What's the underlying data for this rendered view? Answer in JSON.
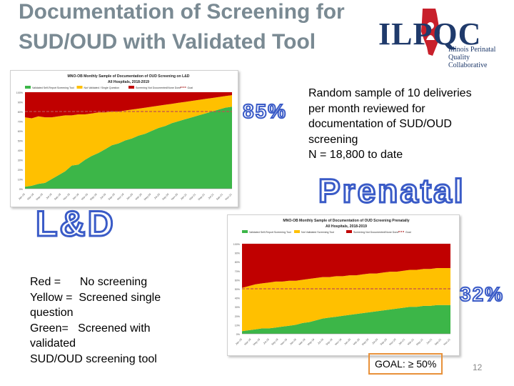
{
  "slide": {
    "title": "Documentation of Screening for SUD/OUD with Validated Tool",
    "page_number": "12"
  },
  "logo": {
    "text": "ILPQC",
    "subtitle_line1": "Illinois Perinatal",
    "subtitle_line2": "Quality Collaborative"
  },
  "description": {
    "line1": "Random sample of 10 deliveries",
    "line2": "per month reviewed for",
    "line3": "documentation of SUD/OUD",
    "line4": "screening",
    "line5": "N = 18,800 to date"
  },
  "labels": {
    "ld_percent": "85%",
    "prenatal_percent": "32%",
    "prenatal_word": "Prenatal",
    "ld_word": "L&D"
  },
  "legend": {
    "line1": "Red =      No screening",
    "line2": "Yellow =  Screened single",
    "line3": "question",
    "line4": "Green=   Screened with",
    "line5": "validated",
    "line6": "SUD/OUD screening tool"
  },
  "goal": {
    "text": "GOAL: ≥ 50%"
  },
  "colors": {
    "red": "#c00000",
    "yellow": "#ffc000",
    "green": "#3cb648",
    "goal_line": "#c05050",
    "outline_blue": "#3a5bc7"
  },
  "chart_data": [
    {
      "type": "area",
      "title": "MNO-OB Monthly Sample of Documentation of OUD Screening on L&D",
      "subtitle": "All Hospitals, 2018-2019",
      "legend": [
        "Validated Self-Report Screening Tool",
        "Not Validated / Single Question",
        "Screening Not Documented/None Done",
        "Goal"
      ],
      "ylim": [
        0,
        100
      ],
      "y_ticks": [
        "0%",
        "10%",
        "20%",
        "30%",
        "40%",
        "50%",
        "60%",
        "70%",
        "80%",
        "90%",
        "100%"
      ],
      "x_ticks": [
        "Jan-18",
        "Mar-18",
        "May-18",
        "Jul-18",
        "Sep-18",
        "Nov-18",
        "Jan-19",
        "Mar-19",
        "May-19",
        "Jul-19",
        "Sep-19",
        "Nov-19",
        "Jan-20",
        "Mar-20",
        "May-20",
        "Jul-20",
        "Sep-20",
        "Nov-20",
        "Jan-21",
        "Mar-21",
        "May-21",
        "Jul-21",
        "Sep-21",
        "Nov-21"
      ],
      "goal": 80,
      "series": [
        {
          "name": "Validated Self-Report Screening Tool",
          "values": [
            2,
            3,
            5,
            6,
            10,
            14,
            18,
            24,
            25,
            30,
            34,
            37,
            41,
            45,
            47,
            50,
            52,
            55,
            57,
            60,
            63,
            65,
            68,
            70,
            72,
            74,
            76,
            78,
            80,
            82,
            84,
            85
          ]
        },
        {
          "name": "Not Validated / Single Question",
          "values": [
            72,
            70,
            70,
            68,
            64,
            61,
            58,
            52,
            52,
            47,
            44,
            42,
            38,
            35,
            33,
            31,
            30,
            28,
            27,
            25,
            23,
            22,
            20,
            19,
            18,
            17,
            16,
            15,
            14,
            13,
            12,
            12
          ]
        },
        {
          "name": "Screening Not Documented/None Done",
          "values": [
            26,
            27,
            25,
            26,
            26,
            25,
            24,
            24,
            23,
            23,
            22,
            21,
            21,
            20,
            20,
            19,
            18,
            17,
            16,
            15,
            14,
            13,
            12,
            11,
            10,
            9,
            8,
            7,
            6,
            5,
            4,
            3
          ]
        }
      ]
    },
    {
      "type": "area",
      "title": "MNO-OB Monthly Sample of Documentation of OUD Screening Prenatally",
      "subtitle": "All Hospitals, 2018-2019",
      "legend": [
        "Validated Self-Report Screening Tool",
        "Not Validated Screening Tool",
        "Screening Not Documented/None Done",
        "Goal"
      ],
      "ylim": [
        0,
        100
      ],
      "y_ticks": [
        "0%",
        "10%",
        "20%",
        "30%",
        "40%",
        "50%",
        "60%",
        "70%",
        "80%",
        "90%",
        "100%"
      ],
      "x_ticks": [
        "Jan-18",
        "Mar-18",
        "May-18",
        "Jul-18",
        "Sep-18",
        "Nov-18",
        "Jan-19",
        "Mar-19",
        "May-19",
        "Jul-19",
        "Sep-19",
        "Nov-19",
        "Jan-20",
        "Mar-20",
        "May-20",
        "Jul-20",
        "Sep-20",
        "Nov-20",
        "Jan-21",
        "Mar-21",
        "May-21",
        "Jul-21",
        "Sep-21",
        "Nov-21"
      ],
      "goal": 50,
      "series": [
        {
          "name": "Validated Self-Report Screening Tool",
          "values": [
            3,
            4,
            5,
            6,
            6,
            7,
            8,
            9,
            10,
            12,
            13,
            15,
            17,
            18,
            19,
            20,
            21,
            22,
            23,
            24,
            25,
            26,
            27,
            28,
            29,
            30,
            30,
            31,
            31,
            32,
            32,
            32
          ]
        },
        {
          "name": "Not Validated Screening Tool",
          "values": [
            48,
            49,
            50,
            50,
            51,
            51,
            50,
            50,
            49,
            48,
            48,
            47,
            46,
            45,
            45,
            44,
            44,
            43,
            43,
            43,
            42,
            42,
            42,
            41,
            41,
            41,
            41,
            41,
            41,
            41,
            41,
            41
          ]
        },
        {
          "name": "Screening Not Documented/None Done",
          "values": [
            49,
            47,
            45,
            44,
            43,
            42,
            42,
            41,
            41,
            40,
            39,
            38,
            37,
            37,
            36,
            36,
            35,
            35,
            34,
            33,
            33,
            32,
            31,
            31,
            30,
            29,
            29,
            28,
            28,
            27,
            27,
            27
          ]
        }
      ]
    }
  ]
}
